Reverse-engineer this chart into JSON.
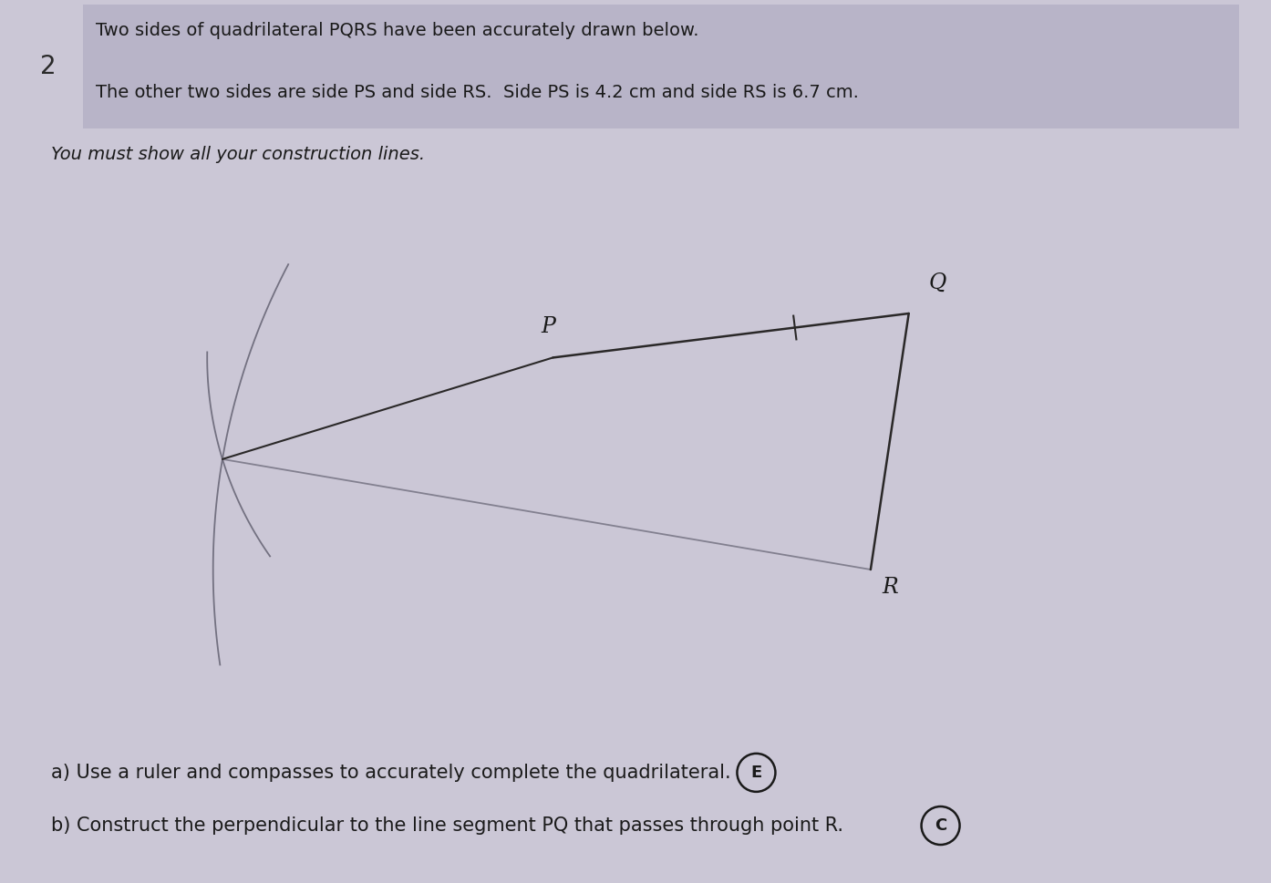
{
  "background_color": "#cbc7d6",
  "header_box_color": "#b8b4c8",
  "line_color": "#2a2828",
  "construction_color": "#6a6878",
  "label_color": "#1a1a1a",
  "title_text": "2",
  "header_text_line1": "Two sides of quadrilateral PQRS have been accurately drawn below.",
  "header_text_line2": "The other two sides are side PS and side RS.  Side PS is 4.2 cm and side RS is 6.7 cm.",
  "instruction_text": "You must show all your construction lines.",
  "part_a_text": "a) Use a ruler and compasses to accurately complete the quadrilateral.",
  "part_b_text": "b) Construct the perpendicular to the line segment PQ that passes through point R.",
  "mark_a": "E",
  "mark_b": "C",
  "P_fig": [
    0.435,
    0.595
  ],
  "Q_fig": [
    0.715,
    0.645
  ],
  "R_fig": [
    0.685,
    0.355
  ],
  "S_fig": [
    0.175,
    0.48
  ]
}
